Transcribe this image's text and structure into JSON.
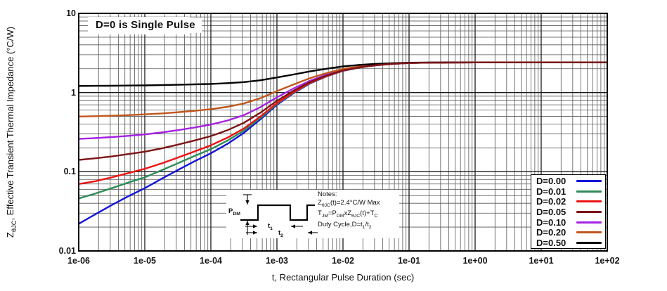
{
  "figure": {
    "annotation": "D=0 is Single Pulse",
    "x_axis": {
      "title": "t, Rectangular Pulse Duration (sec)",
      "ticks": [
        "1e-06",
        "1e-05",
        "1e-04",
        "1e-03",
        "1e-02",
        "1e-01",
        "1e+00",
        "1e+01",
        "1e+02"
      ]
    },
    "y_axis": {
      "title": "Z_{θJC}, Effective Transient Thermal Impedance (°C/W)",
      "ticks": [
        "10",
        "1",
        "0.1",
        "0.01"
      ]
    },
    "notes": {
      "line1": "Notes:",
      "line2": "Z_{θJC}(t)=2.4°C/W Max",
      "line3": "T_{JM}=P_{DM}xZ_{θJC}(t)+T_{C}",
      "line4": "Duty Cycle,D=t_{1}/t_{2}"
    },
    "pulse_diagram": {
      "pdm": "P_{DM}",
      "t1": "t_{1}",
      "t2": "t_{2}"
    }
  },
  "chart_data": {
    "type": "line",
    "x_scale": "log",
    "y_scale": "log",
    "xlim": [
      1e-06,
      100
    ],
    "ylim": [
      0.01,
      10
    ],
    "xlabel": "t, Rectangular Pulse Duration (sec)",
    "ylabel": "ZθJC, Effective Transient Thermal Impedance (°C/W)",
    "grid": "major+minor log-log",
    "legend_position": "inside lower right",
    "max_impedance_C_per_W": 2.4,
    "t_sec": [
      1e-06,
      1.78e-06,
      3.16e-06,
      5.62e-06,
      1e-05,
      1.78e-05,
      3.16e-05,
      5.62e-05,
      0.0001,
      0.000178,
      0.000316,
      0.000562,
      0.001,
      0.00178,
      0.00316,
      0.00562,
      0.01,
      0.0178,
      0.0316,
      0.0562,
      0.1,
      0.178,
      0.316,
      1,
      3.16,
      10,
      31.6,
      100
    ],
    "series": [
      {
        "name": "D=0.00",
        "color": "#1414dd",
        "values": [
          0.022,
          0.029,
          0.038,
          0.049,
          0.062,
          0.081,
          0.105,
          0.135,
          0.171,
          0.225,
          0.31,
          0.46,
          0.7,
          0.98,
          1.3,
          1.6,
          1.88,
          2.07,
          2.21,
          2.3,
          2.36,
          2.38,
          2.39,
          2.4,
          2.4,
          2.4,
          2.4,
          2.4
        ]
      },
      {
        "name": "D=0.01",
        "color": "#2e8b57",
        "values": [
          0.046,
          0.053,
          0.062,
          0.073,
          0.085,
          0.104,
          0.128,
          0.158,
          0.193,
          0.247,
          0.331,
          0.479,
          0.717,
          0.994,
          1.311,
          1.608,
          1.885,
          2.073,
          2.212,
          2.301,
          2.36,
          2.38,
          2.39,
          2.4,
          2.4,
          2.4,
          2.4,
          2.4
        ]
      },
      {
        "name": "D=0.02",
        "color": "#ee1313",
        "values": [
          0.07,
          0.076,
          0.085,
          0.096,
          0.109,
          0.127,
          0.151,
          0.18,
          0.216,
          0.269,
          0.352,
          0.499,
          0.734,
          1.008,
          1.322,
          1.616,
          1.89,
          2.077,
          2.214,
          2.302,
          2.361,
          2.38,
          2.39,
          2.4,
          2.4,
          2.4,
          2.4,
          2.4
        ]
      },
      {
        "name": "D=0.05",
        "color": "#7d1416",
        "values": [
          0.141,
          0.148,
          0.156,
          0.167,
          0.179,
          0.197,
          0.22,
          0.248,
          0.282,
          0.334,
          0.415,
          0.557,
          0.785,
          1.051,
          1.355,
          1.64,
          1.906,
          2.087,
          2.22,
          2.305,
          2.362,
          2.381,
          2.391,
          2.4,
          2.4,
          2.4,
          2.4,
          2.4
        ]
      },
      {
        "name": "D=0.10",
        "color": "#a522e2",
        "values": [
          0.26,
          0.266,
          0.274,
          0.284,
          0.296,
          0.313,
          0.335,
          0.362,
          0.394,
          0.443,
          0.519,
          0.654,
          0.87,
          1.122,
          1.41,
          1.68,
          1.932,
          2.103,
          2.229,
          2.31,
          2.364,
          2.382,
          2.391,
          2.4,
          2.4,
          2.4,
          2.4,
          2.4
        ]
      },
      {
        "name": "D=0.20",
        "color": "#c0571c",
        "values": [
          0.498,
          0.503,
          0.51,
          0.519,
          0.53,
          0.545,
          0.564,
          0.588,
          0.617,
          0.66,
          0.728,
          0.848,
          1.04,
          1.264,
          1.52,
          1.76,
          1.984,
          2.136,
          2.248,
          2.32,
          2.368,
          2.384,
          2.392,
          2.4,
          2.4,
          2.4,
          2.4,
          2.4
        ]
      },
      {
        "name": "D=0.50",
        "color": "#000000",
        "values": [
          1.211,
          1.215,
          1.219,
          1.225,
          1.231,
          1.241,
          1.253,
          1.268,
          1.286,
          1.313,
          1.355,
          1.43,
          1.55,
          1.69,
          1.85,
          2.0,
          2.14,
          2.235,
          2.305,
          2.35,
          2.38,
          2.39,
          2.395,
          2.4,
          2.4,
          2.4,
          2.4,
          2.4
        ]
      }
    ]
  }
}
